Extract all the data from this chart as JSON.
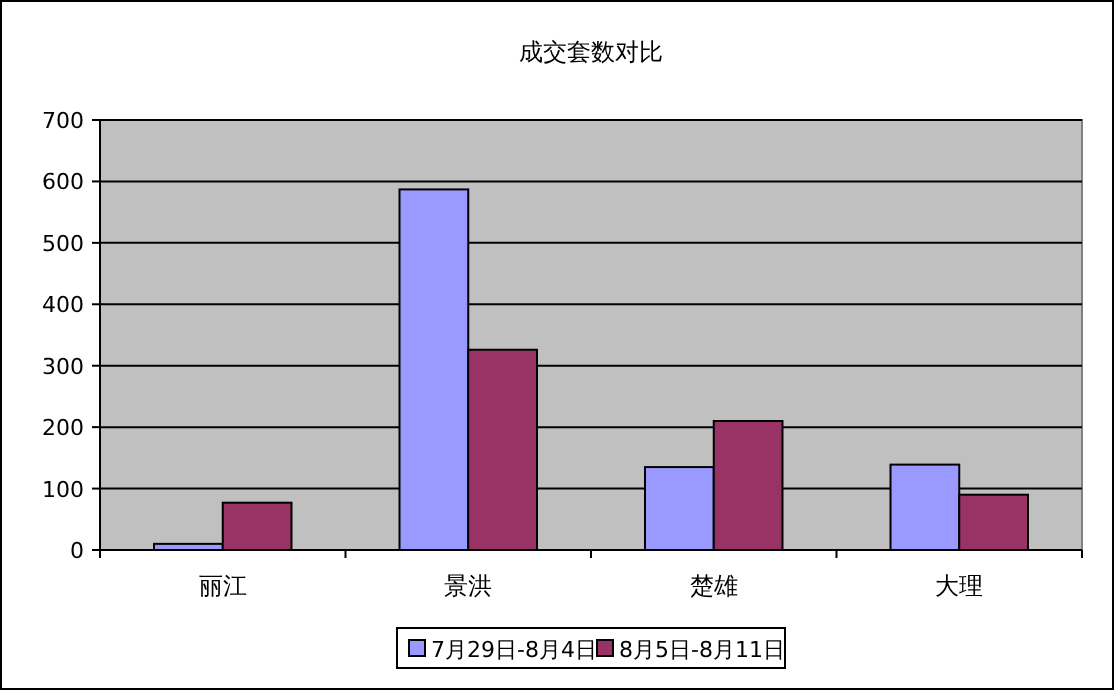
{
  "chart_data": {
    "type": "bar",
    "title": "成交套数对比",
    "categories": [
      "丽江",
      "景洪",
      "楚雄",
      "大理"
    ],
    "series": [
      {
        "name": "7月29日-8月4日",
        "color": "#9999ff",
        "values": [
          10,
          587,
          135,
          139
        ]
      },
      {
        "name": "8月5日-8月11日",
        "color": "#993366",
        "values": [
          77,
          326,
          210,
          90
        ]
      }
    ],
    "ylim": [
      0,
      700
    ],
    "yticks": [
      0,
      100,
      200,
      300,
      400,
      500,
      600,
      700
    ],
    "grid": "y",
    "legend": "bottom"
  }
}
